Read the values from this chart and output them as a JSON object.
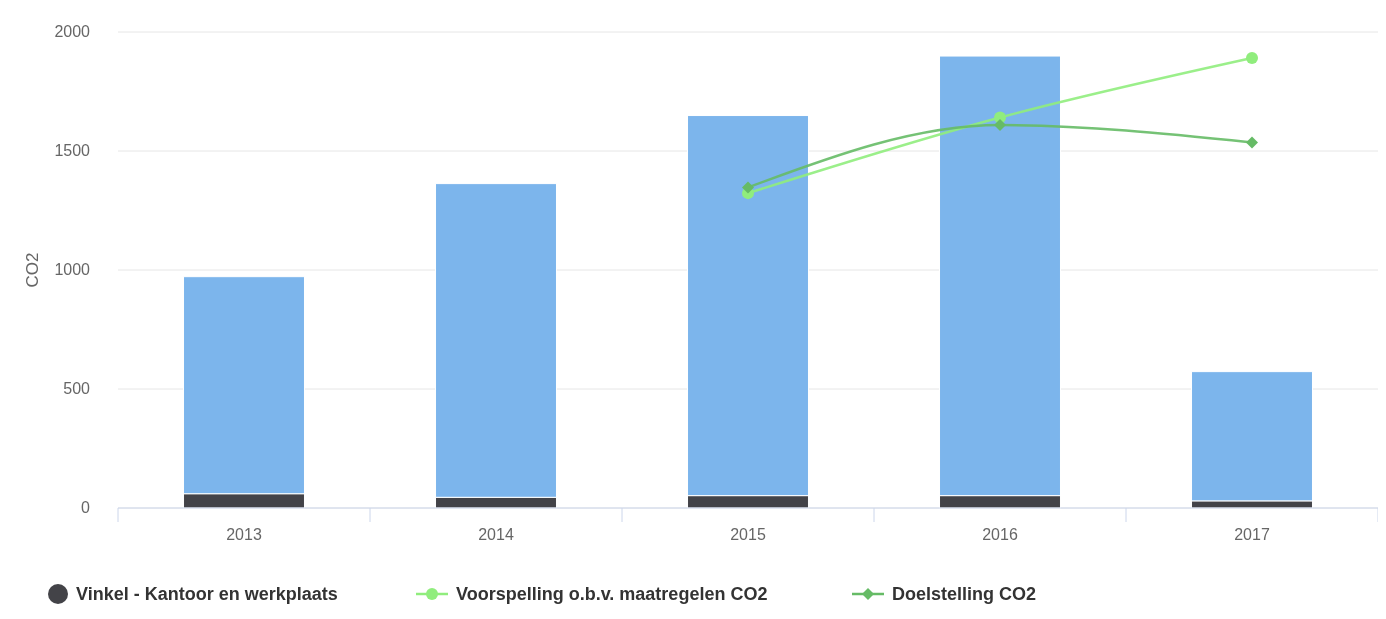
{
  "chart_data": {
    "type": "bar",
    "stacked": true,
    "ylabel": "CO2",
    "categories": [
      "2013",
      "2014",
      "2015",
      "2016",
      "2017"
    ],
    "ylim": [
      0,
      2000
    ],
    "yticks": [
      0,
      500,
      1000,
      1500,
      2000
    ],
    "grid": "y",
    "legend": "bottom",
    "series": [
      {
        "name": "Vinkel - Kantoor en werkplaats",
        "color": "#434348",
        "values": [
          60,
          45,
          52,
          52,
          30
        ]
      },
      {
        "color": "#7cb5ec",
        "values": [
          912,
          1318,
          1597,
          1847,
          543
        ]
      },
      {
        "name": "Voorspelling o.b.v. maatregelen CO2",
        "type": "line",
        "marker": "circle",
        "color": "#90ed7d",
        "values": [
          null,
          null,
          1323,
          1641,
          1891
        ]
      },
      {
        "name": "Doelstelling CO2",
        "type": "line",
        "marker": "diamond",
        "color": "#66bb66",
        "values": [
          null,
          null,
          1347,
          1609,
          1536
        ]
      }
    ]
  }
}
